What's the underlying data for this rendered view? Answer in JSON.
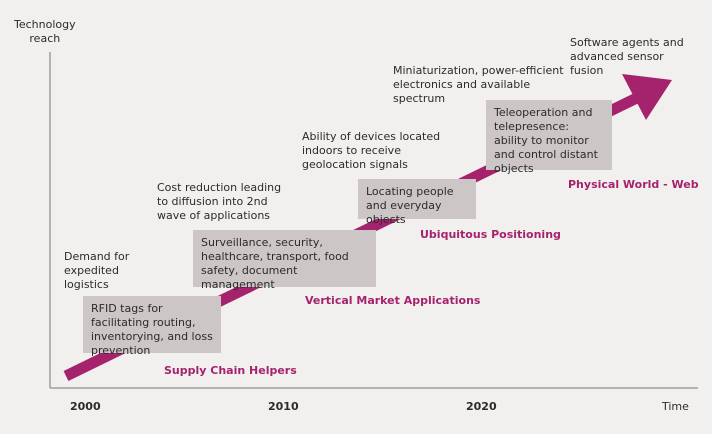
{
  "axes": {
    "y_label": "Technology\nreach",
    "x_label": "Time",
    "x_ticks": [
      "2000",
      "2010",
      "2020"
    ]
  },
  "drivers": [
    "Demand for expedited logistics",
    "Cost reduction leading to diffusion into 2nd wave of applications",
    "Ability of devices located indoors to receive geolocation signals",
    "Miniaturization, power-efficient electronics and available spectrum",
    "Software agents and advanced sensor fusion"
  ],
  "boxes": [
    "RFID tags for facilitating routing, inventorying, and loss prevention",
    "Surveillance, security, healthcare, transport, food safety, document management",
    "Locating people and everyday objects",
    "Teleoperation and telepresence: ability to monitor and control distant objects"
  ],
  "stages": [
    "Supply Chain Helpers",
    "Vertical Market Applications",
    "Ubiquitous Positioning",
    "Physical World - Web"
  ],
  "colors": {
    "arrow": "#a5236d",
    "box": "#cdc6c6",
    "axis": "#9e9e9e"
  }
}
